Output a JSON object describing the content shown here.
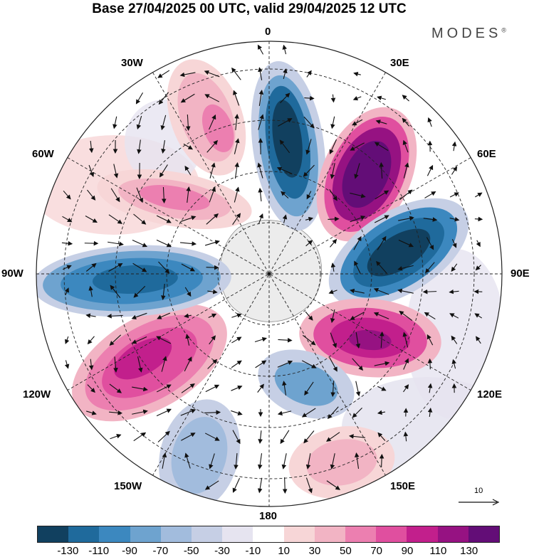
{
  "title": "Base 27/04/2025 00 UTC, valid 29/04/2025 12 UTC",
  "brand": "MODES",
  "brand_mark": "®",
  "longitude_labels": {
    "deg0": "0",
    "deg30e": "30E",
    "deg60e": "60E",
    "deg90e": "90E",
    "deg120e": "120E",
    "deg150e": "150E",
    "deg180": "180",
    "deg150w": "150W",
    "deg120w": "120W",
    "deg90w": "90W",
    "deg60w": "60W",
    "deg30w": "30W"
  },
  "reference_vector_label": "10",
  "colorbar": {
    "colors": [
      "#11405f",
      "#1f6a9c",
      "#3c88bf",
      "#6ea3cf",
      "#a2bcdd",
      "#c6cfe5",
      "#e6e4f0",
      "#ffffff",
      "#f7d6d7",
      "#f2b4c4",
      "#ec7fb0",
      "#e04f9f",
      "#c21f8c",
      "#961282",
      "#630d77"
    ],
    "ticks": [
      "-130",
      "-110",
      "-90",
      "-70",
      "-50",
      "-30",
      "-10",
      "10",
      "30",
      "50",
      "70",
      "90",
      "110",
      "130"
    ]
  }
}
